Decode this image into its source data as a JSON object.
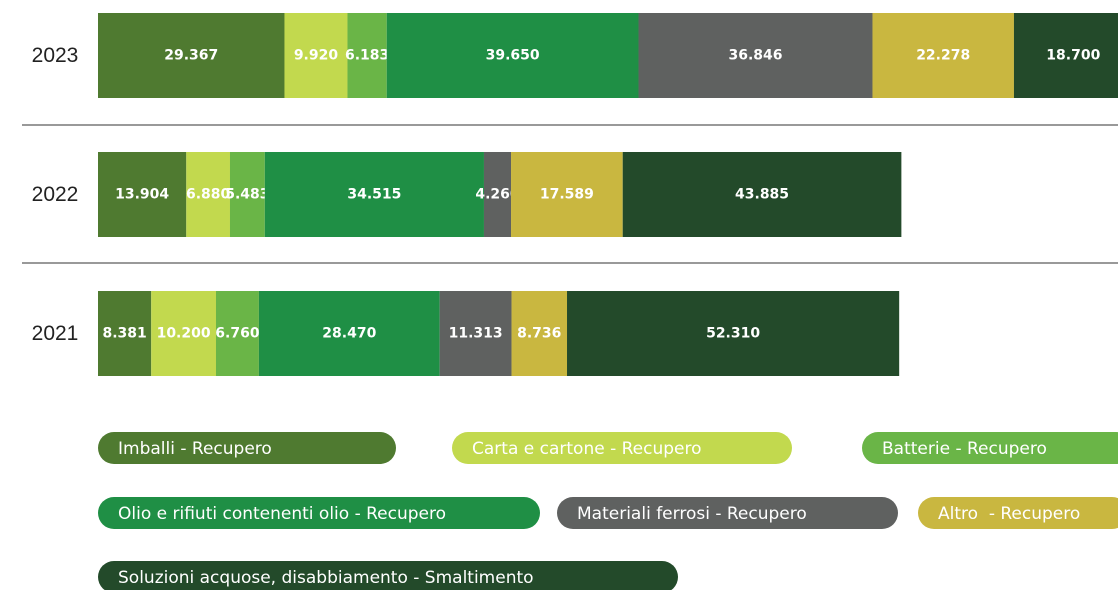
{
  "chart_data": {
    "type": "stacked-bar-horizontal",
    "categories": [
      "2023",
      "2022",
      "2021"
    ],
    "series": [
      {
        "name": "Imballi - Recupero",
        "color": "#4f7a30",
        "values": [
          29367,
          13904,
          8381
        ],
        "value_labels": [
          "29.367",
          "13.904",
          "8.381"
        ]
      },
      {
        "name": "Carta e cartone - Recupero",
        "color": "#c2d94e",
        "values": [
          9920,
          6880,
          10200
        ],
        "value_labels": [
          "9.920",
          "6.880",
          "10.200"
        ]
      },
      {
        "name": "Batterie - Recupero",
        "color": "#6ab547",
        "values": [
          6183,
          5483,
          6760
        ],
        "value_labels": [
          "6.183",
          "5.483",
          "6.760"
        ]
      },
      {
        "name": "Olio e rifiuti contenenti olio - Recupero",
        "color": "#1f8f45",
        "values": [
          39650,
          34515,
          28470
        ],
        "value_labels": [
          "39.650",
          "34.515",
          "28.470"
        ]
      },
      {
        "name": "Materiali ferrosi - Recupero",
        "color": "#5f6160",
        "values": [
          36846,
          4260,
          11313
        ],
        "value_labels": [
          "36.846",
          "4.260",
          "11.313"
        ]
      },
      {
        "name": "Altro  - Recupero",
        "color": "#c9b740",
        "values": [
          22278,
          17589,
          8736
        ],
        "value_labels": [
          "22.278",
          "17.589",
          "8.736"
        ]
      },
      {
        "name": "Soluzioni acquose, disabbiamento - Smaltimento",
        "color": "#234a2a",
        "values": [
          18700,
          43885,
          52310
        ],
        "value_labels": [
          "18.700",
          "43.885",
          "52.310"
        ]
      }
    ]
  }
}
